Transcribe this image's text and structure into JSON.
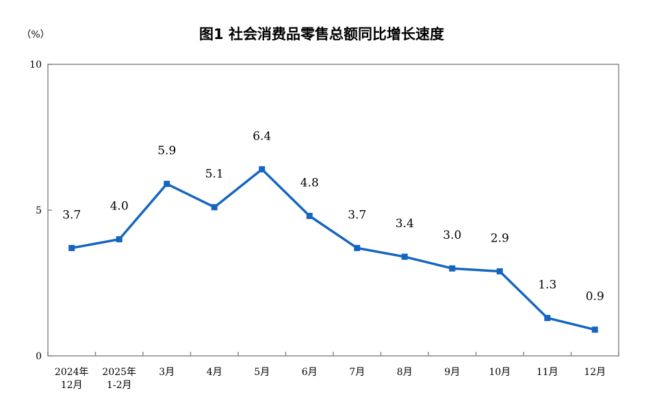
{
  "chart_data": {
    "type": "line",
    "title": "图1  社会消费品零售总额同比增长速度",
    "ylabel": "（%）",
    "xlabel": "",
    "ylim": [
      0,
      10
    ],
    "yticks": [
      "0",
      "5",
      "10"
    ],
    "grid": false,
    "categories": [
      [
        "2024年",
        "12月"
      ],
      [
        "2025年",
        "1-2月"
      ],
      [
        "3月"
      ],
      [
        "4月"
      ],
      [
        "5月"
      ],
      [
        "6月"
      ],
      [
        "7月"
      ],
      [
        "8月"
      ],
      [
        "9月"
      ],
      [
        "10月"
      ],
      [
        "11月"
      ],
      [
        "12月"
      ]
    ],
    "series": [
      {
        "values": [
          3.7,
          4.0,
          5.9,
          5.1,
          6.4,
          4.8,
          3.7,
          3.4,
          3.0,
          2.9,
          1.3,
          0.9
        ],
        "labels": [
          "3.7",
          "4.0",
          "5.9",
          "5.1",
          "6.4",
          "4.8",
          "3.7",
          "3.4",
          "3.0",
          "2.9",
          "1.3",
          "0.9"
        ],
        "color": "#1565c0"
      }
    ]
  }
}
